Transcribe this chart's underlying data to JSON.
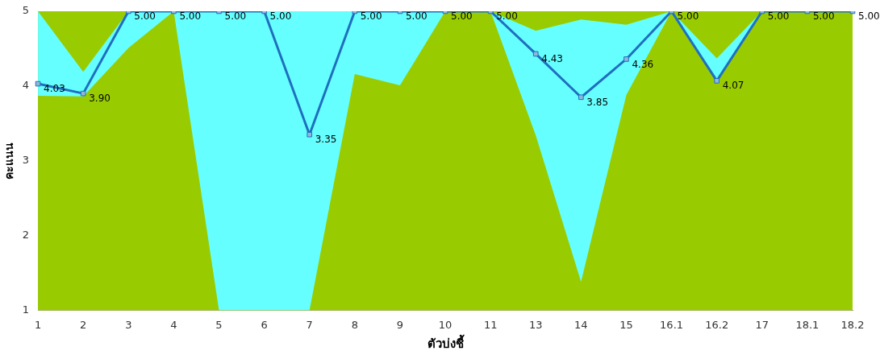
{
  "chart_data": {
    "type": "line",
    "xlabel": "ตัวบ่งชี้",
    "ylabel": "คะแนน",
    "categories": [
      "1",
      "2",
      "3",
      "4",
      "5",
      "6",
      "7",
      "8",
      "9",
      "10",
      "11",
      "13",
      "14",
      "15",
      "16.1",
      "16.2",
      "17",
      "18.1",
      "18.2"
    ],
    "series": [
      {
        "color": "#1f6fbf",
        "values": [
          4.03,
          3.9,
          5.0,
          5.0,
          5.0,
          5.0,
          3.35,
          5.0,
          5.0,
          5.0,
          5.0,
          4.43,
          3.85,
          4.36,
          5.0,
          4.07,
          5.0,
          5.0,
          5.0
        ],
        "value_labels": [
          "4.03",
          "3.90",
          "5.00",
          "5.00",
          "5.00",
          "5.00",
          "3.35",
          "5.00",
          "5.00",
          "5.00",
          "5.00",
          "4.43",
          "3.85",
          "4.36",
          "5.00",
          "4.07",
          "5.00",
          "5.00",
          "5.00"
        ],
        "lower": [
          3.87,
          3.86,
          4.51,
          5,
          1,
          1,
          1,
          4.16,
          4.01,
          5,
          5,
          3.34,
          1.38,
          3.88,
          5,
          4.05,
          5,
          5,
          5
        ],
        "upper": [
          5,
          4.19,
          5,
          5,
          5,
          5,
          5,
          5,
          5,
          5,
          5,
          4.74,
          4.89,
          4.82,
          5,
          4.37,
          5,
          5,
          5
        ]
      }
    ],
    "ylim": [
      1,
      5
    ],
    "yticks": [
      1,
      2,
      3,
      4,
      5
    ],
    "grid": false,
    "legend": false,
    "marker": "square",
    "line_style": "solid"
  }
}
